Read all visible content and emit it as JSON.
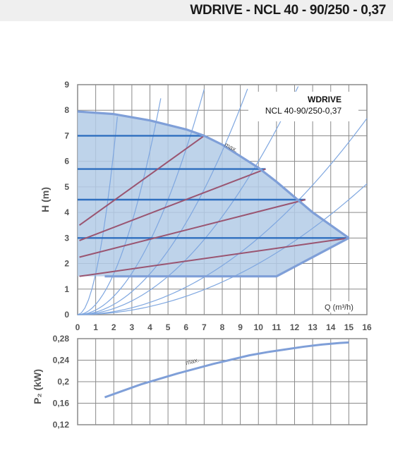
{
  "header": {
    "title": "WDRIVE - NCL 40 - 90/250 - 0,37"
  },
  "chart_data": [
    {
      "type": "area",
      "title": "WDRIVE",
      "subtitle": "NCL 40-90/250-0,37",
      "ylabel": "H (m)",
      "xlabel": "Q (m³/h)",
      "xlim": [
        0,
        16
      ],
      "ylim": [
        0,
        9
      ],
      "x_ticks": [
        "0",
        "1",
        "2",
        "3",
        "4",
        "5",
        "6",
        "7",
        "8",
        "9",
        "10",
        "11",
        "12",
        "13",
        "14",
        "15",
        "16"
      ],
      "y_ticks": [
        "0",
        "1",
        "2",
        "3",
        "4",
        "5",
        "6",
        "7",
        "8",
        "9"
      ],
      "grid": true,
      "annotation": "max.",
      "colors": {
        "area": "#b3cbe6",
        "area_border": "#7f9fd8",
        "control_lines": "#9a5571",
        "constant_lines": "#2f6fbf",
        "system_curves": "#7fa7e0"
      },
      "max_curve": {
        "x": [
          0,
          2,
          4,
          6,
          7,
          8,
          9,
          10,
          11,
          12,
          13,
          14,
          15
        ],
        "y": [
          7.95,
          7.85,
          7.6,
          7.25,
          7.0,
          6.65,
          6.2,
          5.75,
          5.2,
          4.6,
          4.0,
          3.5,
          3.0
        ]
      },
      "min_curve": {
        "x": [
          1.5,
          11.0,
          15.0
        ],
        "y": [
          1.5,
          1.5,
          3.0
        ]
      },
      "proportional_lines": [
        {
          "x": [
            0.1,
            7.0
          ],
          "y": [
            3.5,
            7.0
          ]
        },
        {
          "x": [
            0.1,
            10.4
          ],
          "y": [
            2.9,
            5.7
          ]
        },
        {
          "x": [
            0.1,
            12.6
          ],
          "y": [
            2.25,
            4.5
          ]
        },
        {
          "x": [
            0.1,
            15.0
          ],
          "y": [
            1.5,
            3.0
          ]
        }
      ],
      "constant_lines": [
        {
          "y": 7.0,
          "x_end": 7.0
        },
        {
          "y": 5.7,
          "x_end": 10.4
        },
        {
          "y": 4.5,
          "x_end": 12.6
        },
        {
          "y": 3.0,
          "x_end": 15.0
        }
      ],
      "system_curve_coefficients": [
        1.6,
        0.4,
        0.18,
        0.1,
        0.06,
        0.03,
        0.02
      ]
    },
    {
      "type": "line",
      "ylabel": "P₂ (kW)",
      "xlim": [
        0,
        16
      ],
      "ylim": [
        0.12,
        0.28
      ],
      "y_ticks": [
        "0,28",
        "0,24",
        "0,2",
        "0,16",
        "0,12"
      ],
      "y_tick_values": [
        0.28,
        0.24,
        0.2,
        0.16,
        0.12
      ],
      "grid": true,
      "annotation": "max.",
      "series": [
        {
          "x": [
            1.5,
            2.5,
            3.5,
            4.5,
            5.5,
            6.5,
            7.5,
            8.5,
            9.5,
            10.5,
            11.5,
            12.5,
            13.5,
            14.5,
            15.0
          ],
          "y": [
            0.171,
            0.183,
            0.195,
            0.205,
            0.215,
            0.224,
            0.233,
            0.241,
            0.249,
            0.255,
            0.26,
            0.265,
            0.269,
            0.272,
            0.273
          ]
        }
      ]
    }
  ]
}
